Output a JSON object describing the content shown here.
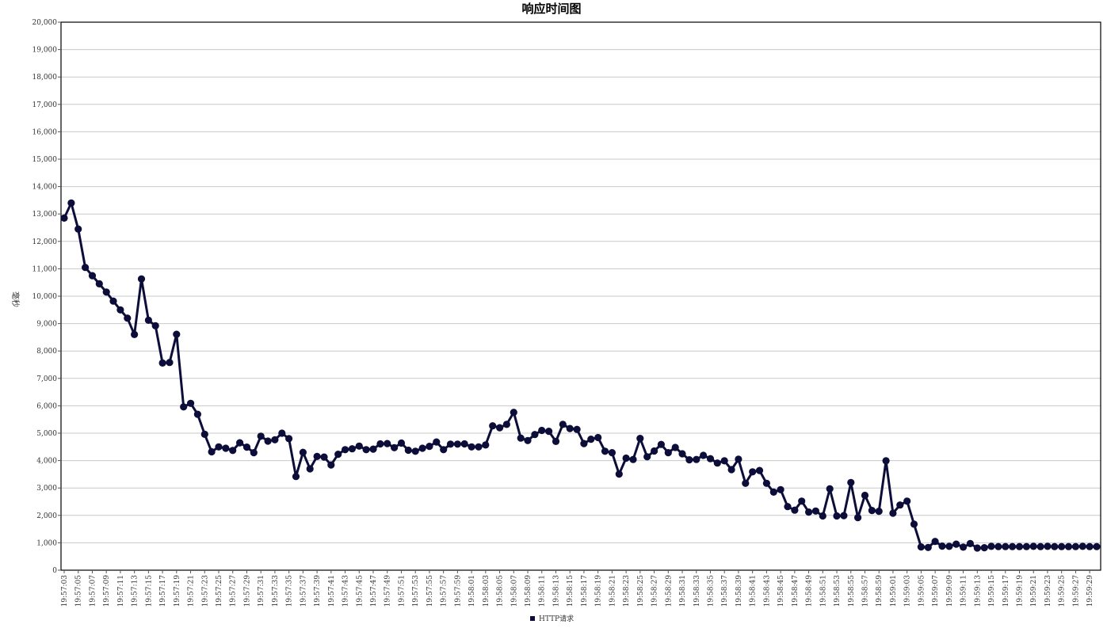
{
  "chart_data": {
    "type": "line",
    "title": "响应时间图",
    "xlabel": "",
    "ylabel": "毫秒",
    "ylim": [
      0,
      20000
    ],
    "yticks": [
      "0",
      "1,000",
      "2,000",
      "3,000",
      "4,000",
      "5,000",
      "6,000",
      "7,000",
      "8,000",
      "9,000",
      "10,000",
      "11,000",
      "12,000",
      "13,000",
      "14,000",
      "15,000",
      "16,000",
      "17,000",
      "18,000",
      "19,000",
      "20,000"
    ],
    "x_labels": [
      "19:57:03",
      "19:57:05",
      "19:57:07",
      "19:57:09",
      "19:57:11",
      "19:57:13",
      "19:57:15",
      "19:57:17",
      "19:57:19",
      "19:57:21",
      "19:57:23",
      "19:57:25",
      "19:57:27",
      "19:57:29",
      "19:57:31",
      "19:57:33",
      "19:57:35",
      "19:57:37",
      "19:57:39",
      "19:57:41",
      "19:57:43",
      "19:57:45",
      "19:57:47",
      "19:57:49",
      "19:57:51",
      "19:57:53",
      "19:57:55",
      "19:57:57",
      "19:57:59",
      "19:58:01",
      "19:58:03",
      "19:58:05",
      "19:58:07",
      "19:58:09",
      "19:58:11",
      "19:58:13",
      "19:58:15",
      "19:58:17",
      "19:58:19",
      "19:58:21",
      "19:58:23",
      "19:58:25",
      "19:58:27",
      "19:58:29",
      "19:58:31",
      "19:58:33",
      "19:58:35",
      "19:58:37",
      "19:58:39",
      "19:58:41",
      "19:58:43",
      "19:58:45",
      "19:58:47",
      "19:58:49",
      "19:58:51",
      "19:58:53",
      "19:58:55",
      "19:58:57",
      "19:58:59",
      "19:59:01",
      "19:59:03",
      "19:59:05",
      "19:59:07",
      "19:59:09",
      "19:59:11",
      "19:59:13",
      "19:59:15",
      "19:59:17",
      "19:59:19",
      "19:59:21",
      "19:59:23",
      "19:59:25",
      "19:59:27",
      "19:59:29"
    ],
    "grid": true,
    "legend_position": "bottom-center",
    "series": [
      {
        "name": "HTTP请求",
        "color": "#0d0d3a",
        "values": [
          12850,
          13400,
          12450,
          11050,
          10750,
          10450,
          10150,
          9820,
          9500,
          9200,
          8600,
          10630,
          9120,
          8920,
          7560,
          7580,
          8610,
          5960,
          6090,
          5690,
          4960,
          4320,
          4500,
          4450,
          4370,
          4650,
          4490,
          4290,
          4890,
          4710,
          4760,
          5000,
          4800,
          3420,
          4300,
          3700,
          4150,
          4130,
          3840,
          4230,
          4400,
          4430,
          4530,
          4400,
          4420,
          4610,
          4620,
          4470,
          4640,
          4380,
          4340,
          4450,
          4520,
          4680,
          4400,
          4600,
          4600,
          4610,
          4500,
          4500,
          4570,
          5270,
          5200,
          5320,
          5760,
          4820,
          4730,
          4950,
          5100,
          5070,
          4700,
          5320,
          5170,
          5140,
          4620,
          4780,
          4840,
          4340,
          4290,
          3510,
          4090,
          4040,
          4810,
          4140,
          4350,
          4590,
          4290,
          4480,
          4250,
          4030,
          4040,
          4190,
          4070,
          3910,
          3990,
          3670,
          4050,
          3170,
          3590,
          3640,
          3170,
          2850,
          2940,
          2320,
          2190,
          2520,
          2120,
          2160,
          1980,
          2970,
          1980,
          1990,
          3200,
          1920,
          2730,
          2180,
          2150,
          3990,
          2080,
          2380,
          2520,
          1680,
          850,
          830,
          1050,
          880,
          870,
          950,
          840,
          970,
          810,
          820,
          870,
          860,
          860,
          860,
          860,
          860,
          870,
          860,
          870,
          860,
          860,
          860,
          860,
          870,
          860,
          860
        ]
      }
    ]
  }
}
